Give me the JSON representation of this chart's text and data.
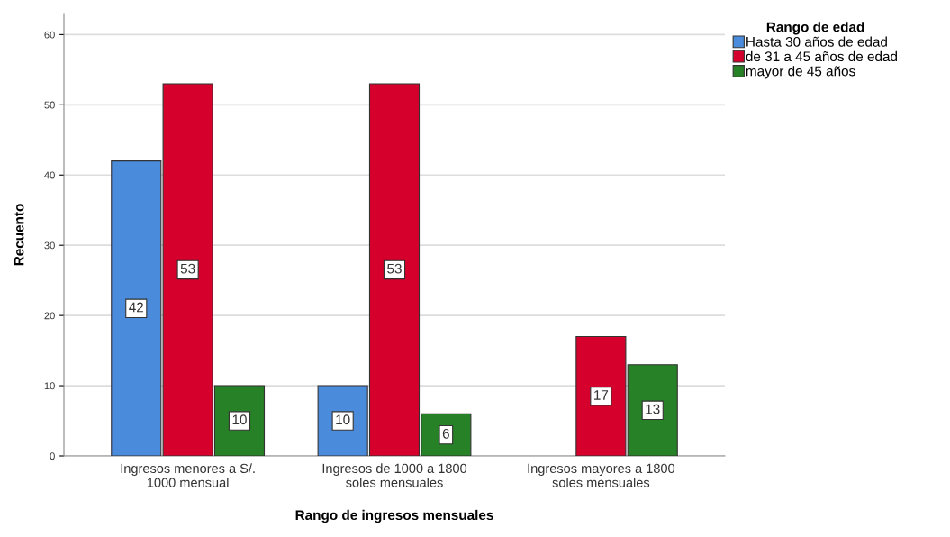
{
  "chart_data": {
    "type": "bar",
    "xlabel": "Rango de ingresos mensuales",
    "ylabel": "Recuento",
    "legend_title": "Rango de edad",
    "categories": [
      "Ingresos menores a S/.\n1000 mensual",
      "Ingresos de 1000 a 1800\nsoles mensuales",
      "Ingresos mayores a 1800\nsoles mensuales"
    ],
    "series": [
      {
        "name": "Hasta 30 años de edad",
        "color": "#4a8bdc",
        "values": [
          42,
          10,
          null
        ]
      },
      {
        "name": "de 31 a 45 años de edad",
        "color": "#d5002c",
        "values": [
          53,
          53,
          17
        ]
      },
      {
        "name": "mayor de 45 años",
        "color": "#278127",
        "values": [
          10,
          6,
          13
        ]
      }
    ],
    "ylim": [
      0,
      63
    ],
    "yticks": [
      0,
      10,
      20,
      30,
      40,
      50,
      60
    ],
    "grid": "y",
    "legend": "top right",
    "data_labels": true
  }
}
